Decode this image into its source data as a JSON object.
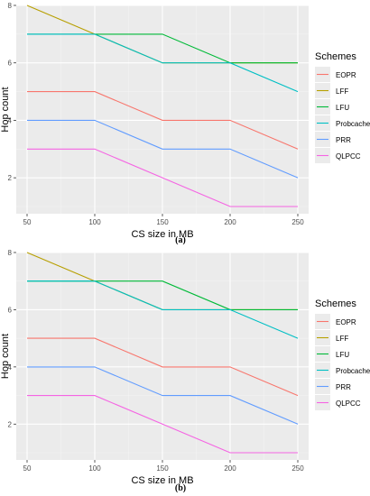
{
  "legend_title": "Schemes",
  "captions": [
    "(a)",
    "(b)"
  ],
  "colors": {
    "panel_bg": "#EBEBEB",
    "grid_major": "#FFFFFF",
    "grid_minor": "#F3F3F3",
    "axis_text": "#4D4D4D",
    "EOPR": "#F8766D",
    "LFF": "#B79F00",
    "LFU": "#00BA38",
    "Probcache": "#00BFC4",
    "PRR": "#619CFF",
    "QLPCC": "#F564E3"
  },
  "chart_data": [
    {
      "type": "line",
      "caption": "(a)",
      "x": [
        50,
        100,
        150,
        200,
        250
      ],
      "xlabel": "CS size in MB",
      "ylabel": "Hop count",
      "xlim": [
        50,
        250
      ],
      "ylim": [
        1,
        8
      ],
      "xticks": [
        50,
        100,
        150,
        200,
        250
      ],
      "yticks": [
        2,
        4,
        6,
        8
      ],
      "grid": true,
      "legend_title": "Schemes",
      "legend_position": "right",
      "series": [
        {
          "name": "EOPR",
          "values": [
            5,
            5,
            4,
            4,
            3
          ]
        },
        {
          "name": "LFF",
          "values": [
            8,
            7,
            6,
            6,
            6
          ]
        },
        {
          "name": "LFU",
          "values": [
            7,
            7,
            7,
            6,
            6
          ]
        },
        {
          "name": "Probcache",
          "values": [
            7,
            7,
            6,
            6,
            5
          ]
        },
        {
          "name": "PRR",
          "values": [
            4,
            4,
            3,
            3,
            2
          ]
        },
        {
          "name": "QLPCC",
          "values": [
            3,
            3,
            2,
            1,
            1
          ]
        }
      ]
    },
    {
      "type": "line",
      "caption": "(b)",
      "x": [
        50,
        100,
        150,
        200,
        250
      ],
      "xlabel": "CS size in MB",
      "ylabel": "Hop count",
      "xlim": [
        50,
        250
      ],
      "ylim": [
        1,
        8
      ],
      "xticks": [
        50,
        100,
        150,
        200,
        250
      ],
      "yticks": [
        2,
        4,
        6,
        8
      ],
      "grid": true,
      "legend_title": "Schemes",
      "legend_position": "right",
      "series": [
        {
          "name": "EOPR",
          "values": [
            5,
            5,
            4,
            4,
            3
          ]
        },
        {
          "name": "LFF",
          "values": [
            8,
            7,
            6,
            6,
            6
          ]
        },
        {
          "name": "LFU",
          "values": [
            7,
            7,
            7,
            6,
            6
          ]
        },
        {
          "name": "Probcache",
          "values": [
            7,
            7,
            6,
            6,
            5
          ]
        },
        {
          "name": "PRR",
          "values": [
            4,
            4,
            3,
            3,
            2
          ]
        },
        {
          "name": "QLPCC",
          "values": [
            3,
            3,
            2,
            1,
            1
          ]
        }
      ]
    }
  ]
}
